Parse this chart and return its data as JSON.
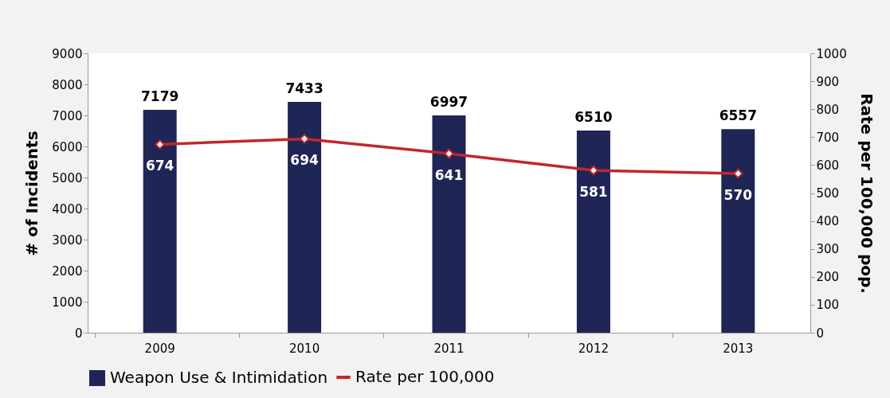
{
  "chart_data": {
    "type": "bar",
    "categories": [
      "2009",
      "2010",
      "2011",
      "2012",
      "2013"
    ],
    "ylabel": "# of Incidents",
    "y2label": "Rate per 100,000 pop.",
    "ylim": [
      0,
      9000
    ],
    "yticks": [
      0,
      1000,
      2000,
      3000,
      4000,
      5000,
      6000,
      7000,
      8000,
      9000
    ],
    "y2lim": [
      0,
      1000
    ],
    "y2ticks": [
      0,
      100,
      200,
      300,
      400,
      500,
      600,
      700,
      800,
      900,
      1000
    ],
    "series": [
      {
        "name": "Weapon Use & Intimidation",
        "color": "#1f2555",
        "values": [
          7179,
          7433,
          6997,
          6510,
          6557
        ]
      },
      {
        "name": "Rate per 100,000",
        "type": "line",
        "axis": "y2",
        "color": "#c0272d",
        "marker": "diamond",
        "line_style": "solid",
        "values": [
          674,
          694,
          641,
          581,
          570
        ]
      }
    ],
    "data_labels": true,
    "grid": false,
    "legend": "bottom"
  }
}
